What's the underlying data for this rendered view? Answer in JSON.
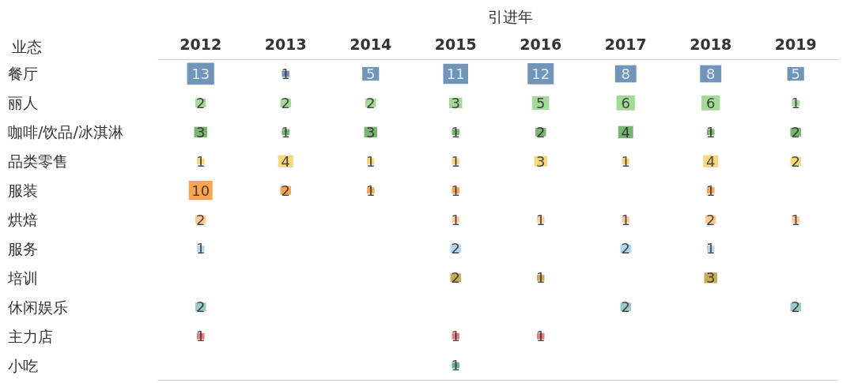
{
  "chart_data": {
    "type": "heatmap",
    "xlabel": "引进年",
    "ylabel": "业态",
    "categories": [
      "2012",
      "2013",
      "2014",
      "2015",
      "2016",
      "2017",
      "2018",
      "2019"
    ],
    "y_categories": [
      "餐厅",
      "丽人",
      "咖啡/饮品/冰淇淋",
      "品类零售",
      "服装",
      "烘焙",
      "服务",
      "培训",
      "休闲娱乐",
      "主力店",
      "小吃"
    ],
    "colors": [
      "#4e79a7",
      "#8cd17d",
      "#59a14f",
      "#f1ce63",
      "#f28e2b",
      "#ffbe7d",
      "#a0cbe8",
      "#b6992d",
      "#86bcb6",
      "#e15759",
      "#499894"
    ],
    "cells": [
      [
        13,
        1,
        5,
        11,
        12,
        8,
        8,
        5
      ],
      [
        2,
        2,
        2,
        3,
        5,
        6,
        6,
        1
      ],
      [
        3,
        1,
        3,
        1,
        2,
        4,
        1,
        2
      ],
      [
        1,
        4,
        1,
        1,
        3,
        1,
        4,
        2
      ],
      [
        10,
        2,
        1,
        1,
        null,
        null,
        1,
        null
      ],
      [
        2,
        null,
        null,
        1,
        1,
        1,
        2,
        1
      ],
      [
        1,
        null,
        null,
        2,
        null,
        2,
        1,
        null
      ],
      [
        null,
        null,
        null,
        2,
        1,
        null,
        3,
        null
      ],
      [
        2,
        null,
        null,
        null,
        null,
        2,
        null,
        2
      ],
      [
        1,
        null,
        null,
        1,
        1,
        null,
        null,
        null
      ],
      [
        null,
        null,
        null,
        1,
        null,
        null,
        null,
        null
      ]
    ],
    "data_labels": true,
    "grid": false
  }
}
